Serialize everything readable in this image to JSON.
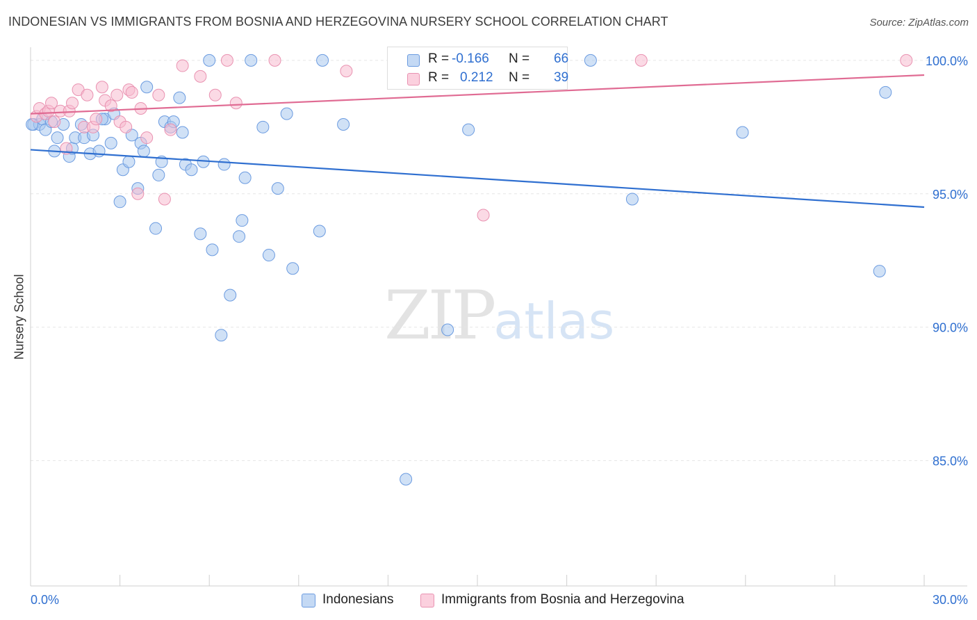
{
  "header": {
    "title": "INDONESIAN VS IMMIGRANTS FROM BOSNIA AND HERZEGOVINA NURSERY SCHOOL CORRELATION CHART",
    "source": "Source: ZipAtlas.com"
  },
  "legend": {
    "r_label": "R =",
    "n_label": "N =",
    "series": [
      {
        "r": "-0.166",
        "n": "66"
      },
      {
        "r": "0.212",
        "n": "39"
      }
    ]
  },
  "bottom_legend": {
    "indonesians": "Indonesians",
    "bosnia": "Immigrants from Bosnia and Herzegovina"
  },
  "watermark": {
    "zip": "ZIP",
    "atlas": "atlas"
  },
  "colors": {
    "blue_fill": "#aac8ee",
    "blue_stroke": "#6b9be0",
    "blue_line": "#2f6fd0",
    "pink_fill": "#f7bcd0",
    "pink_stroke": "#e992b1",
    "pink_line": "#e06b93",
    "tick_text": "#2f6fd0",
    "grid": "#e6e6e6"
  },
  "chart_data": {
    "type": "scatter",
    "title": "INDONESIAN VS IMMIGRANTS FROM BOSNIA AND HERZEGOVINA NURSERY SCHOOL CORRELATION CHART",
    "xlabel": "",
    "ylabel": "Nursery School",
    "xlim": [
      0,
      30
    ],
    "ylim": [
      80.3,
      100.7
    ],
    "x_tick_labels": [
      "0.0%",
      "30.0%"
    ],
    "y_ticks": [
      100,
      95,
      90,
      85
    ],
    "y_tick_labels": [
      "100.0%",
      "95.0%",
      "90.0%",
      "85.0%"
    ],
    "series": [
      {
        "name": "Indonesians",
        "r": -0.166,
        "n": 66,
        "trend": {
          "x0": 0,
          "y0": 96.65,
          "x1": 30,
          "y1": 94.5
        },
        "points": [
          [
            0.1,
            97.6
          ],
          [
            0.3,
            97.6
          ],
          [
            0.4,
            97.8
          ],
          [
            0.5,
            97.4
          ],
          [
            0.7,
            97.7
          ],
          [
            0.8,
            96.6
          ],
          [
            0.9,
            97.1
          ],
          [
            1.1,
            97.6
          ],
          [
            1.3,
            96.4
          ],
          [
            1.4,
            96.7
          ],
          [
            1.5,
            97.1
          ],
          [
            1.7,
            97.6
          ],
          [
            1.8,
            97.1
          ],
          [
            2.0,
            96.5
          ],
          [
            2.1,
            97.2
          ],
          [
            2.3,
            96.6
          ],
          [
            2.5,
            97.8
          ],
          [
            2.7,
            96.9
          ],
          [
            2.8,
            98.0
          ],
          [
            3.0,
            94.7
          ],
          [
            3.1,
            95.9
          ],
          [
            3.3,
            96.2
          ],
          [
            3.4,
            97.2
          ],
          [
            3.6,
            95.2
          ],
          [
            3.7,
            96.9
          ],
          [
            3.8,
            96.6
          ],
          [
            3.9,
            99.0
          ],
          [
            4.2,
            93.7
          ],
          [
            4.3,
            95.7
          ],
          [
            4.4,
            96.2
          ],
          [
            4.5,
            97.7
          ],
          [
            4.7,
            97.5
          ],
          [
            4.8,
            97.7
          ],
          [
            5.0,
            98.6
          ],
          [
            5.1,
            97.3
          ],
          [
            5.2,
            96.1
          ],
          [
            5.4,
            95.9
          ],
          [
            5.7,
            93.5
          ],
          [
            5.8,
            96.2
          ],
          [
            6.0,
            100.0
          ],
          [
            6.1,
            92.9
          ],
          [
            6.4,
            89.7
          ],
          [
            6.5,
            96.1
          ],
          [
            6.7,
            91.2
          ],
          [
            7.0,
            93.4
          ],
          [
            7.1,
            94.0
          ],
          [
            7.2,
            95.6
          ],
          [
            7.4,
            100.0
          ],
          [
            7.8,
            97.5
          ],
          [
            8.0,
            92.7
          ],
          [
            8.3,
            95.2
          ],
          [
            8.6,
            98.0
          ],
          [
            8.8,
            92.2
          ],
          [
            9.7,
            93.6
          ],
          [
            9.8,
            100.0
          ],
          [
            10.5,
            97.6
          ],
          [
            12.6,
            84.3
          ],
          [
            14.0,
            89.9
          ],
          [
            14.7,
            97.4
          ],
          [
            18.8,
            100.0
          ],
          [
            20.2,
            94.8
          ],
          [
            23.9,
            97.3
          ],
          [
            28.5,
            92.1
          ],
          [
            28.7,
            98.8
          ],
          [
            0.05,
            97.6
          ],
          [
            2.4,
            97.8
          ]
        ]
      },
      {
        "name": "Immigrants from Bosnia and Herzegovina",
        "r": 0.212,
        "n": 39,
        "trend": {
          "x0": 0,
          "y0": 98.0,
          "x1": 30,
          "y1": 99.45
        },
        "points": [
          [
            0.2,
            97.9
          ],
          [
            0.3,
            98.2
          ],
          [
            0.5,
            98.0
          ],
          [
            0.6,
            98.1
          ],
          [
            0.7,
            98.4
          ],
          [
            0.8,
            97.7
          ],
          [
            1.0,
            98.1
          ],
          [
            1.2,
            96.7
          ],
          [
            1.3,
            98.1
          ],
          [
            1.4,
            98.4
          ],
          [
            1.6,
            98.9
          ],
          [
            1.8,
            97.5
          ],
          [
            1.9,
            98.7
          ],
          [
            2.1,
            97.5
          ],
          [
            2.2,
            97.8
          ],
          [
            2.4,
            99.0
          ],
          [
            2.5,
            98.5
          ],
          [
            2.7,
            98.3
          ],
          [
            2.9,
            98.7
          ],
          [
            3.0,
            97.7
          ],
          [
            3.2,
            97.5
          ],
          [
            3.3,
            98.9
          ],
          [
            3.4,
            98.8
          ],
          [
            3.6,
            95.0
          ],
          [
            3.7,
            98.2
          ],
          [
            3.9,
            97.1
          ],
          [
            4.3,
            98.7
          ],
          [
            4.5,
            94.8
          ],
          [
            4.7,
            97.4
          ],
          [
            5.1,
            99.8
          ],
          [
            5.7,
            99.4
          ],
          [
            6.2,
            98.7
          ],
          [
            6.6,
            100.0
          ],
          [
            6.9,
            98.4
          ],
          [
            8.2,
            100.0
          ],
          [
            10.6,
            99.6
          ],
          [
            15.2,
            94.2
          ],
          [
            20.5,
            100.0
          ],
          [
            29.4,
            100.0
          ]
        ]
      }
    ]
  }
}
